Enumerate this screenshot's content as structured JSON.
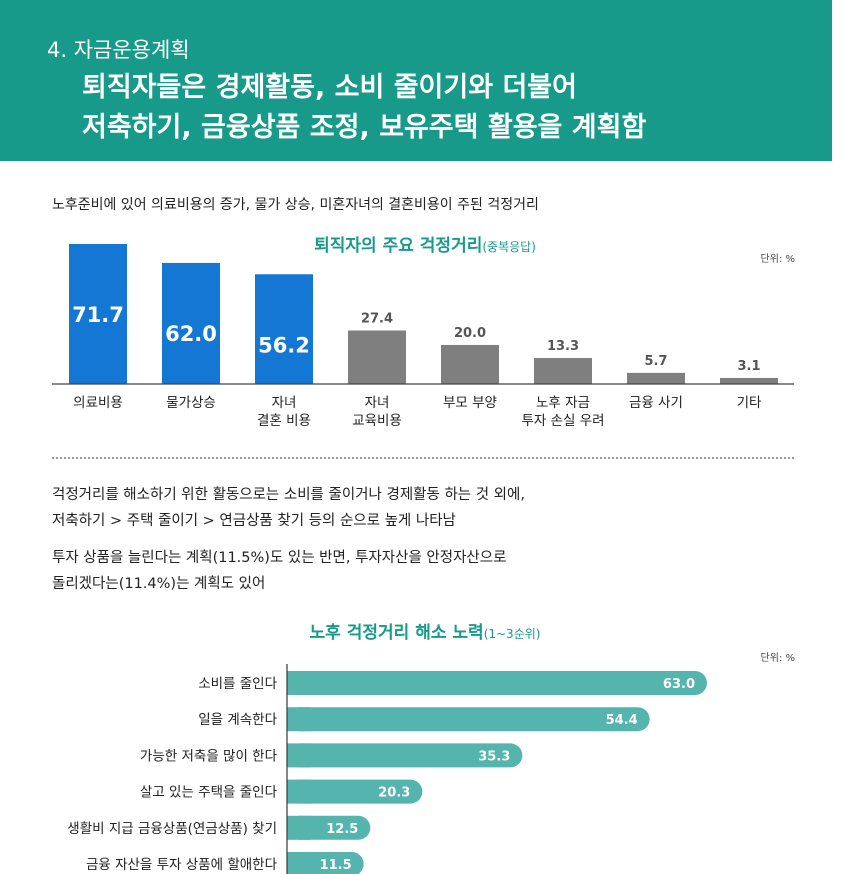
{
  "header": {
    "section": "4. 자금운용계획",
    "headline_lines": [
      "퇴직자들은 경제활동, 소비 줄이기와 더불어",
      "저축하기, 금융상품 조정, 보유주택 활용을 계획함"
    ]
  },
  "intro": "노후준비에 있어 의료비용의 증가, 물가 상승, 미혼자녀의 결혼비용이 주된 걱정거리",
  "chart1_title": {
    "main": "퇴직자의 주요 걱정거리",
    "sub": "(중복응답)"
  },
  "chart2_title": {
    "main": "노후 걱정거리 해소 노력",
    "sub": "(1~3순위)"
  },
  "unit_label": "단위: %",
  "paragraph1": [
    "걱정거리를 해소하기 위한 활동으로는 소비를 줄이거나 경제활동 하는 것 외에,",
    "저축하기 > 주택 줄이기 > 연금상품 찾기 등의 순으로 높게 나타남"
  ],
  "paragraph2": [
    "투자 상품을 늘린다는 계획(11.5%)도 있는 반면, 투자자산을 안정자산으로",
    "돌리겠다는(11.4%)는 계획도 있어"
  ],
  "colors": {
    "teal": "#179a8a",
    "blue": "#1477d3",
    "gray": "#7f7f7f",
    "bar_teal": "#55b5ae"
  },
  "chart_data": [
    {
      "type": "bar",
      "title": "퇴직자의 주요 걱정거리(중복응답)",
      "unit": "%",
      "categories": [
        [
          "의료비용"
        ],
        [
          "물가상승"
        ],
        [
          "자녀",
          "결혼 비용"
        ],
        [
          "자녀",
          "교육비용"
        ],
        [
          "부모 부양"
        ],
        [
          "노후 자금",
          "투자 손실 우려"
        ],
        [
          "금융 사기"
        ],
        [
          "기타"
        ]
      ],
      "values": [
        71.7,
        62.0,
        56.2,
        27.4,
        20.0,
        13.3,
        5.7,
        3.1
      ],
      "value_labels": [
        "71.7",
        "62.0",
        "56.2",
        "27.4",
        "20.0",
        "13.3",
        "5.7",
        "3.1"
      ],
      "highlight_count": 3,
      "ylim": [
        0,
        71.7
      ]
    },
    {
      "type": "bar",
      "orientation": "horizontal",
      "title": "노후 걱정거리 해소 노력(1~3순위)",
      "unit": "%",
      "categories": [
        "소비를 줄인다",
        "일을 계속한다",
        "가능한 저축을 많이 한다",
        "살고 있는 주택을 줄인다",
        "생활비 지급 금융상품(연금상품) 찾기",
        "금융 자산을 투자 상품에 할애한다"
      ],
      "values": [
        63.0,
        54.4,
        35.3,
        20.3,
        12.5,
        11.5
      ],
      "value_labels": [
        "63.0",
        "54.4",
        "35.3",
        "20.3",
        "12.5",
        "11.5"
      ],
      "xlim": [
        0,
        63.0
      ]
    }
  ]
}
